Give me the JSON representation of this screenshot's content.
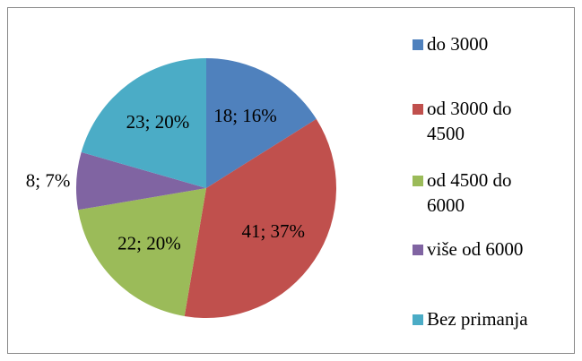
{
  "chart_data": {
    "type": "pie",
    "categories": [
      "do 3000",
      "od 3000 do 4500",
      "od 4500 do 6000",
      "više od 6000",
      "Bez primanja"
    ],
    "values": [
      18,
      41,
      22,
      8,
      23
    ],
    "value_labels": [
      "18; 16%",
      "41; 37%",
      "22; 20%",
      "8; 7%",
      "23; 20%"
    ],
    "colors": [
      "#4f81bd",
      "#c0504d",
      "#9bbb59",
      "#8064a2",
      "#4bacc6"
    ],
    "legend": "right"
  }
}
